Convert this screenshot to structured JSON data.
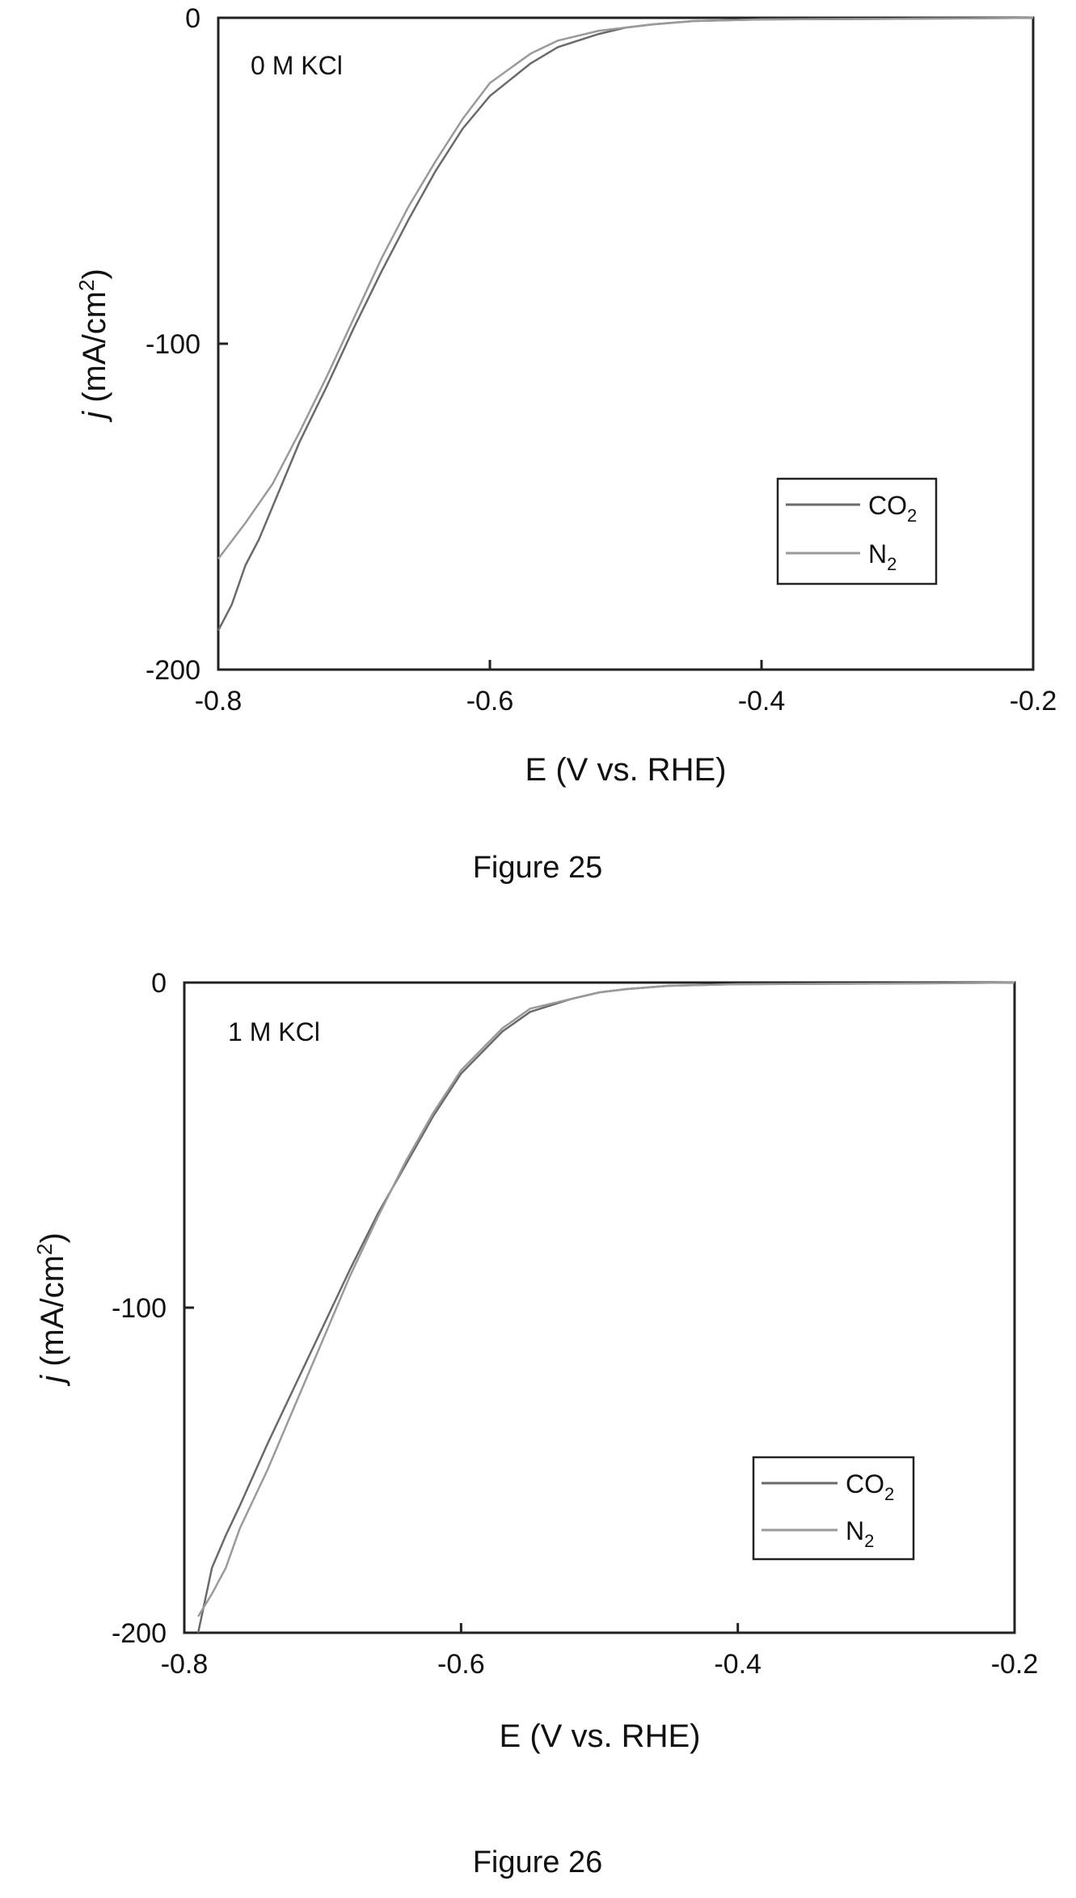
{
  "chart_data": [
    {
      "type": "line",
      "figure_caption": "Figure 25",
      "annotation": "0 M KCl",
      "xlabel": "E (V vs. RHE)",
      "ylabel_prefix": "j",
      "ylabel_main": " (mA/cm",
      "ylabel_sup": "2",
      "ylabel_close": ")",
      "xlim": [
        -0.8,
        -0.2
      ],
      "ylim": [
        -200,
        0
      ],
      "xticks": [
        -0.8,
        -0.6,
        -0.4,
        -0.2
      ],
      "xtick_labels": [
        "-0.8",
        "-0.6",
        "-0.4",
        "-0.2"
      ],
      "yticks": [
        0,
        -100,
        -200
      ],
      "ytick_labels": [
        "0",
        "-100",
        "-200"
      ],
      "grid": false,
      "legend_position": "bottom-right",
      "series": [
        {
          "name": "CO₂",
          "legend_main": "CO",
          "legend_sub": "2",
          "color": "#6a6a6a",
          "x": [
            -0.2,
            -0.25,
            -0.3,
            -0.35,
            -0.4,
            -0.45,
            -0.48,
            -0.5,
            -0.52,
            -0.55,
            -0.57,
            -0.6,
            -0.62,
            -0.64,
            -0.66,
            -0.68,
            -0.7,
            -0.72,
            -0.74,
            -0.76,
            -0.77,
            -0.78,
            -0.79,
            -0.8
          ],
          "y": [
            0,
            -0.2,
            -0.3,
            -0.4,
            -0.5,
            -1,
            -2,
            -3,
            -5,
            -9,
            -14,
            -24,
            -34,
            -47,
            -62,
            -78,
            -95,
            -113,
            -130,
            -150,
            -160,
            -168,
            -180,
            -188
          ]
        },
        {
          "name": "N₂",
          "legend_main": "N",
          "legend_sub": "2",
          "color": "#9a9a9a",
          "x": [
            -0.2,
            -0.25,
            -0.3,
            -0.35,
            -0.4,
            -0.45,
            -0.48,
            -0.5,
            -0.52,
            -0.55,
            -0.57,
            -0.6,
            -0.62,
            -0.64,
            -0.66,
            -0.68,
            -0.7,
            -0.72,
            -0.74,
            -0.76,
            -0.78,
            -0.8
          ],
          "y": [
            0,
            -0.2,
            -0.3,
            -0.4,
            -0.5,
            -1,
            -2,
            -3,
            -4,
            -7,
            -11,
            -20,
            -31,
            -44,
            -58,
            -74,
            -92,
            -110,
            -127,
            -143,
            -155,
            -166
          ]
        }
      ]
    },
    {
      "type": "line",
      "figure_caption": "Figure 26",
      "annotation": "1 M KCl",
      "xlabel": "E (V vs. RHE)",
      "ylabel_prefix": "j",
      "ylabel_main": " (mA/cm",
      "ylabel_sup": "2",
      "ylabel_close": ")",
      "xlim": [
        -0.8,
        -0.2
      ],
      "ylim": [
        -200,
        0
      ],
      "xticks": [
        -0.8,
        -0.6,
        -0.4,
        -0.2
      ],
      "xtick_labels": [
        "-0.8",
        "-0.6",
        "-0.4",
        "-0.2"
      ],
      "yticks": [
        0,
        -100,
        -200
      ],
      "ytick_labels": [
        "0",
        "-100",
        "-200"
      ],
      "grid": false,
      "legend_position": "bottom-right",
      "series": [
        {
          "name": "CO₂",
          "legend_main": "CO",
          "legend_sub": "2",
          "color": "#6a6a6a",
          "x": [
            -0.2,
            -0.25,
            -0.3,
            -0.35,
            -0.4,
            -0.45,
            -0.48,
            -0.5,
            -0.52,
            -0.55,
            -0.57,
            -0.6,
            -0.62,
            -0.64,
            -0.66,
            -0.68,
            -0.7,
            -0.72,
            -0.74,
            -0.76,
            -0.77,
            -0.78,
            -0.79
          ],
          "y": [
            0,
            -0.2,
            -0.3,
            -0.4,
            -0.5,
            -1,
            -2,
            -3,
            -5,
            -9,
            -15,
            -28,
            -41,
            -56,
            -71,
            -88,
            -106,
            -124,
            -142,
            -161,
            -170,
            -180,
            -200
          ]
        },
        {
          "name": "N₂",
          "legend_main": "N",
          "legend_sub": "2",
          "color": "#9a9a9a",
          "x": [
            -0.2,
            -0.25,
            -0.3,
            -0.35,
            -0.4,
            -0.45,
            -0.48,
            -0.5,
            -0.52,
            -0.55,
            -0.57,
            -0.6,
            -0.62,
            -0.64,
            -0.66,
            -0.68,
            -0.7,
            -0.72,
            -0.74,
            -0.76,
            -0.77,
            -0.78,
            -0.79
          ],
          "y": [
            0,
            -0.2,
            -0.3,
            -0.4,
            -0.5,
            -1,
            -2,
            -3,
            -5,
            -8,
            -14,
            -27,
            -40,
            -55,
            -72,
            -90,
            -110,
            -130,
            -150,
            -168,
            -180,
            -188,
            -195
          ]
        }
      ]
    }
  ]
}
